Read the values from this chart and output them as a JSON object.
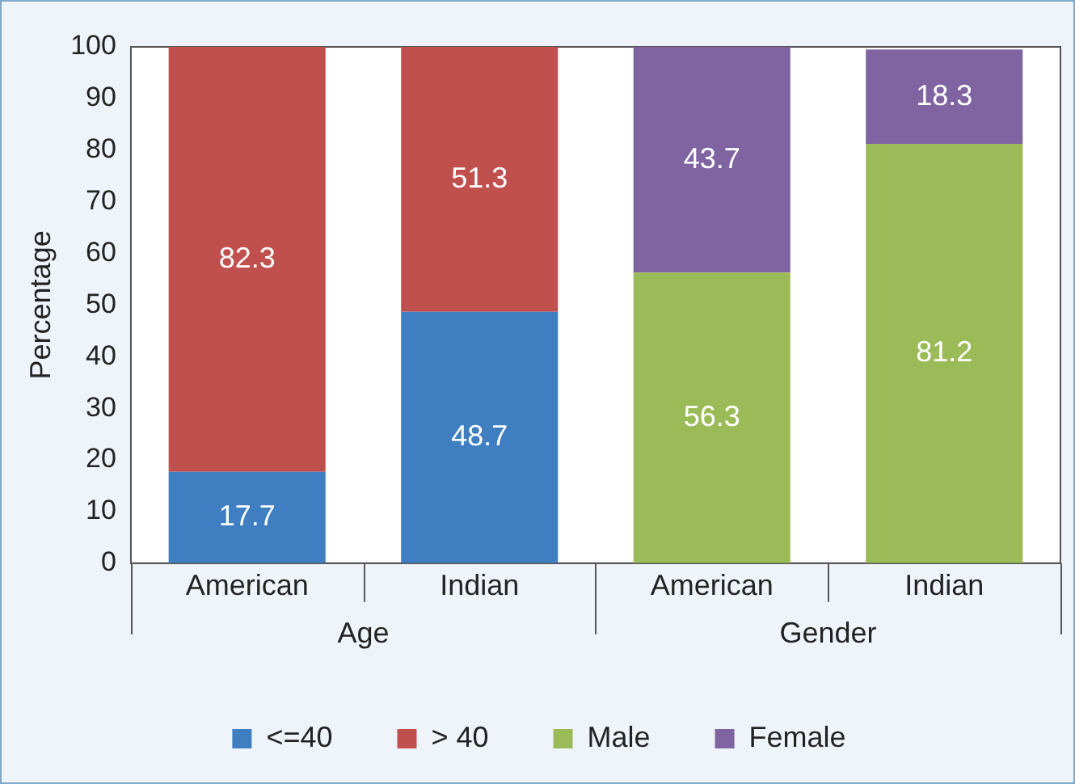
{
  "chart_data": {
    "type": "bar",
    "stacked": true,
    "categories": [
      "American",
      "Indian",
      "American",
      "Indian"
    ],
    "series": [
      {
        "name": "<=40",
        "color": "#3f7fc1",
        "values": [
          17.7,
          48.7,
          null,
          null
        ]
      },
      {
        "name": "> 40",
        "color": "#c0504d",
        "values": [
          82.3,
          51.3,
          null,
          null
        ]
      },
      {
        "name": "Male",
        "color": "#9bbb59",
        "values": [
          null,
          null,
          56.3,
          81.2
        ]
      },
      {
        "name": "Female",
        "color": "#8064a2",
        "values": [
          null,
          null,
          43.7,
          18.3
        ]
      }
    ],
    "ylabel": "Percentage",
    "ylim": [
      0,
      100
    ],
    "yticks": [
      0,
      10,
      20,
      30,
      40,
      50,
      60,
      70,
      80,
      90,
      100
    ],
    "annotations": [
      "Age",
      "Gender"
    ],
    "data_labels": true,
    "legend": "bottom",
    "grid": false
  }
}
